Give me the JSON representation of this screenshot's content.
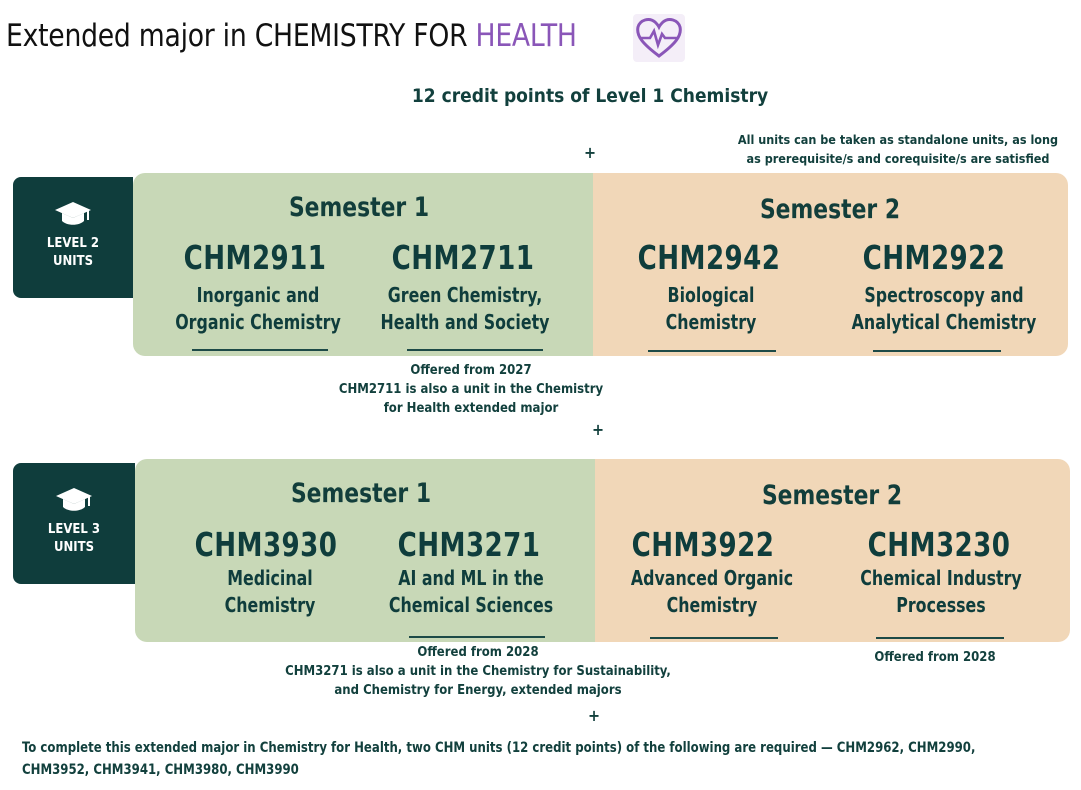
{
  "title": {
    "prefix": "Extended major in CHEMISTRY FOR ",
    "highlight": "HEALTH"
  },
  "icons": {
    "title_icon": "heart-pulse-icon",
    "level_icon": "graduation-cap-icon"
  },
  "colors": {
    "semester1": "#c8d8b7",
    "semester2": "#f1d7b8",
    "side_label": "#0f3d3c",
    "health": "#8a56b8"
  },
  "prereq": "12 credit points of Level 1 Chemistry",
  "plus": "+",
  "standalone_note": [
    "All  units can be taken as standalone units, as long",
    "as prerequisite/s and corequisite/s are satisfied"
  ],
  "level2": {
    "label": [
      "LEVEL 2",
      "UNITS"
    ],
    "sem1_title": "Semester 1",
    "sem2_title": "Semester 2",
    "units": [
      {
        "code": "CHM2911",
        "name": [
          "Inorganic and",
          "Organic Chemistry"
        ]
      },
      {
        "code": "CHM2711",
        "name": [
          "Green Chemistry,",
          "Health and Society"
        ]
      },
      {
        "code": "CHM2942",
        "name": [
          "Biological",
          "Chemistry"
        ]
      },
      {
        "code": "CHM2922",
        "name": [
          "Spectroscopy and",
          "Analytical Chemistry"
        ]
      }
    ],
    "note": [
      "Offered from 2027",
      "CHM2711 is also a unit in the Chemistry",
      "for Health extended major"
    ]
  },
  "level3": {
    "label": [
      "LEVEL 3",
      "UNITS"
    ],
    "sem1_title": "Semester 1",
    "sem2_title": "Semester 2",
    "units": [
      {
        "code": "CHM3930",
        "name": [
          "Medicinal",
          "Chemistry"
        ]
      },
      {
        "code": "CHM3271",
        "name": [
          "AI and ML in the",
          "Chemical Sciences"
        ]
      },
      {
        "code": "CHM3922",
        "name": [
          "Advanced Organic",
          "Chemistry"
        ]
      },
      {
        "code": "CHM3230",
        "name": [
          "Chemical Industry",
          "Processes"
        ]
      }
    ],
    "note": [
      "Offered from 2028",
      "CHM3271 is also a unit in the Chemistry for Sustainability,",
      "and Chemistry for Energy, extended majors"
    ],
    "note_right": "Offered from 2028"
  },
  "footer": [
    "To complete this extended major in Chemistry for Health, two CHM units (12 credit points) of the following are required — CHM2962, CHM2990,",
    "CHM3952, CHM3941, CHM3980, CHM3990"
  ]
}
